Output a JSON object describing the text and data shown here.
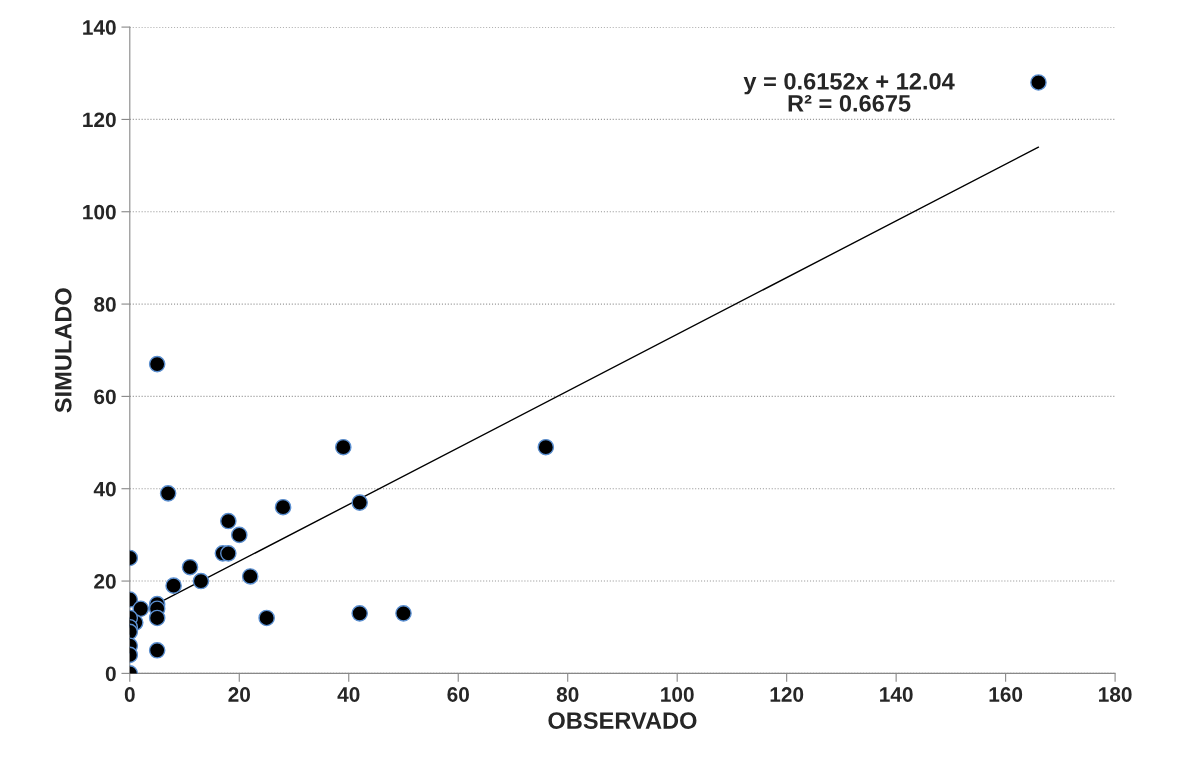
{
  "chart_data": {
    "type": "scatter",
    "xlabel": "OBSERVADO",
    "ylabel": "SIMULADO",
    "annotations": [
      "y = 0.6152x + 12.04\nR² = 0.6675"
    ],
    "xlim": [
      0,
      180
    ],
    "xticks": [
      0,
      20,
      40,
      60,
      80,
      100,
      120,
      140,
      160,
      180
    ],
    "ylim": [
      0,
      140
    ],
    "yticks": [
      0,
      20,
      40,
      60,
      80,
      100,
      120,
      140
    ],
    "grid": "y",
    "legend": false,
    "series": [
      {
        "marker": "circle",
        "color": "#000000",
        "x": [
          5,
          7,
          0,
          0,
          2,
          5,
          5,
          5,
          1,
          0,
          0,
          0,
          0,
          0,
          0,
          5,
          8,
          11,
          13,
          17,
          18,
          18,
          20,
          22,
          25,
          28,
          39,
          42,
          42,
          50,
          76,
          166
        ],
        "values": [
          67,
          39,
          25,
          16,
          14,
          15,
          14,
          12,
          11,
          12,
          10,
          9,
          6,
          4,
          0,
          5,
          19,
          23,
          20,
          26,
          26,
          33,
          30,
          21,
          12,
          36,
          49,
          37,
          13,
          13,
          49,
          128
        ]
      },
      {
        "type": "line",
        "color": "#000000",
        "x": [
          0,
          166
        ],
        "values": [
          12,
          114
        ]
      }
    ]
  }
}
